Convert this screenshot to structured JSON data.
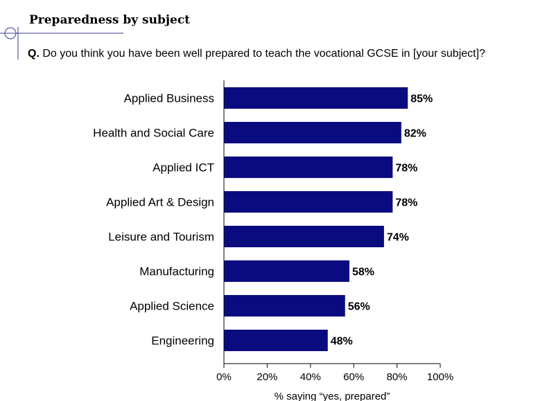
{
  "header": {
    "title": "Preparedness by subject",
    "question_prefix": "Q.",
    "question_text": "Do you think you have been well prepared to teach the vocational GCSE in [your subject]?"
  },
  "chart_data": {
    "type": "bar",
    "orientation": "horizontal",
    "categories": [
      "Applied Business",
      "Health and Social Care",
      "Applied ICT",
      "Applied Art & Design",
      "Leisure and Tourism",
      "Manufacturing",
      "Applied Science",
      "Engineering"
    ],
    "values": [
      85,
      82,
      78,
      78,
      74,
      58,
      56,
      48
    ],
    "value_labels": [
      "85%",
      "82%",
      "78%",
      "78%",
      "74%",
      "58%",
      "56%",
      "48%"
    ],
    "xlabel": "% saying “yes, prepared”",
    "xlim": [
      0,
      100
    ],
    "ticks": [
      0,
      20,
      40,
      60,
      80,
      100
    ],
    "tick_labels": [
      "0%",
      "20%",
      "40%",
      "60%",
      "80%",
      "100%"
    ],
    "bar_color": "#0b0b80",
    "grid": false,
    "legend": "none"
  }
}
